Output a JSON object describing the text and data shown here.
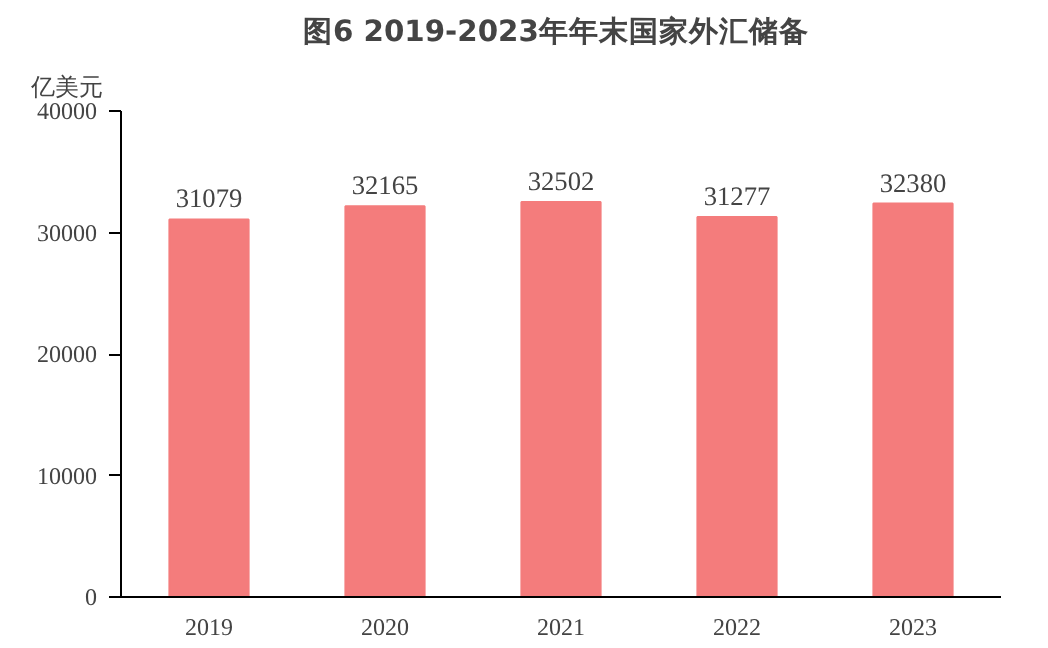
{
  "chart_data": {
    "type": "bar",
    "title": "图6  2019-2023年年末国家外汇储备",
    "ylabel": "亿美元",
    "categories": [
      "2019",
      "2020",
      "2021",
      "2022",
      "2023"
    ],
    "values": [
      31079,
      32165,
      32502,
      31277,
      32380
    ],
    "color": "#f47c7c",
    "ylim": [
      0,
      40000
    ],
    "yticks": [
      0,
      10000,
      20000,
      30000,
      40000
    ],
    "grid": false,
    "data_labels": true
  }
}
